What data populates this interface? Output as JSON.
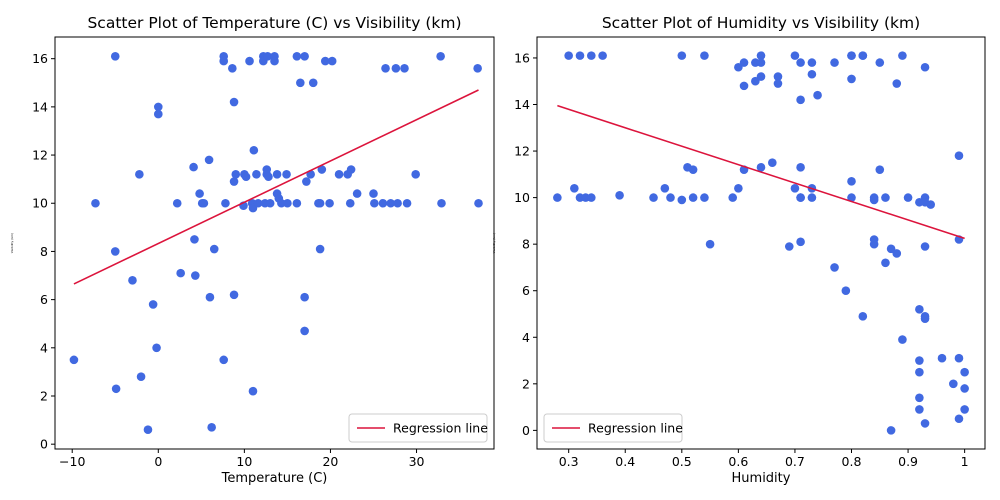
{
  "chart_data": [
    {
      "type": "scatter",
      "title": "Scatter Plot of Temperature (C) vs Visibility (km)",
      "xlabel": "Temperature (C)",
      "ylabel": "Visibility (km)",
      "xlim": [
        -12,
        39
      ],
      "ylim": [
        -0.2,
        16.9
      ],
      "xticks": [
        -10,
        0,
        10,
        20,
        30
      ],
      "yticks": [
        0,
        2,
        4,
        6,
        8,
        10,
        12,
        14,
        16
      ],
      "grid": false,
      "legend": {
        "position": "lower right",
        "entries": [
          "Regression line"
        ]
      },
      "series": [
        {
          "kind": "points",
          "color": "#4169e1",
          "points": [
            [
              -9.8,
              3.5
            ],
            [
              -7.3,
              10
            ],
            [
              -5,
              16.1
            ],
            [
              -5,
              8
            ],
            [
              -4.9,
              2.3
            ],
            [
              -3,
              6.8
            ],
            [
              -2.2,
              11.2
            ],
            [
              -2,
              2.8
            ],
            [
              -1.2,
              0.6
            ],
            [
              -0.6,
              5.8
            ],
            [
              -0.2,
              4
            ],
            [
              0,
              14
            ],
            [
              0,
              13.7
            ],
            [
              2.2,
              10
            ],
            [
              2.6,
              7.1
            ],
            [
              4.1,
              11.5
            ],
            [
              4.2,
              8.5
            ],
            [
              4.3,
              7
            ],
            [
              4.8,
              10.4
            ],
            [
              5.1,
              10
            ],
            [
              5.3,
              10
            ],
            [
              5.9,
              11.8
            ],
            [
              6,
              6.1
            ],
            [
              6.2,
              0.7
            ],
            [
              6.5,
              8.1
            ],
            [
              7.6,
              16.1
            ],
            [
              7.6,
              15.9
            ],
            [
              7.6,
              3.5
            ],
            [
              7.8,
              10
            ],
            [
              8.6,
              15.6
            ],
            [
              8.8,
              14.2
            ],
            [
              8.8,
              6.2
            ],
            [
              8.8,
              10.9
            ],
            [
              9,
              11.2
            ],
            [
              9.9,
              9.9
            ],
            [
              10,
              11.2
            ],
            [
              10.2,
              11.1
            ],
            [
              10.6,
              15.9
            ],
            [
              10.9,
              10
            ],
            [
              11,
              9.8
            ],
            [
              11,
              2.2
            ],
            [
              11.1,
              12.2
            ],
            [
              11.4,
              11.2
            ],
            [
              11.6,
              10
            ],
            [
              12.2,
              16.1
            ],
            [
              12.2,
              15.9
            ],
            [
              12.4,
              10
            ],
            [
              12.6,
              11.2
            ],
            [
              12.6,
              11.4
            ],
            [
              12.7,
              16.1
            ],
            [
              12.8,
              11.1
            ],
            [
              13,
              10
            ],
            [
              13.5,
              16.1
            ],
            [
              13.5,
              15.9
            ],
            [
              13.8,
              10.4
            ],
            [
              13.8,
              11.2
            ],
            [
              14,
              10.2
            ],
            [
              14.3,
              10
            ],
            [
              14.9,
              11.2
            ],
            [
              15,
              10
            ],
            [
              16.1,
              16.1
            ],
            [
              16.1,
              10
            ],
            [
              16.5,
              15
            ],
            [
              17,
              16.1
            ],
            [
              17,
              6.1
            ],
            [
              17,
              4.7
            ],
            [
              17.2,
              10.9
            ],
            [
              17.7,
              11.2
            ],
            [
              18,
              15
            ],
            [
              18.6,
              10
            ],
            [
              18.8,
              8.1
            ],
            [
              18.8,
              10
            ],
            [
              19,
              11.4
            ],
            [
              19.4,
              15.9
            ],
            [
              19.9,
              10
            ],
            [
              20.2,
              15.9
            ],
            [
              21,
              11.2
            ],
            [
              22,
              11.2
            ],
            [
              22.3,
              10
            ],
            [
              22.4,
              11.4
            ],
            [
              23.1,
              10.4
            ],
            [
              25,
              10.4
            ],
            [
              25.1,
              10
            ],
            [
              26.1,
              10
            ],
            [
              26.4,
              15.6
            ],
            [
              27,
              10
            ],
            [
              27.6,
              15.6
            ],
            [
              27.8,
              10
            ],
            [
              28.6,
              15.6
            ],
            [
              28.9,
              10
            ],
            [
              29.9,
              11.2
            ],
            [
              32.8,
              16.1
            ],
            [
              32.9,
              10
            ],
            [
              37.1,
              15.6
            ],
            [
              37.2,
              10
            ]
          ]
        },
        {
          "kind": "line",
          "name": "Regression line",
          "color": "#dc143c",
          "points": [
            [
              -9.8,
              6.65
            ],
            [
              37.2,
              14.7
            ]
          ]
        }
      ]
    },
    {
      "type": "scatter",
      "title": "Scatter Plot of Humidity vs Visibility (km)",
      "xlabel": "Humidity",
      "ylabel": "Visibility (km)",
      "xlim": [
        0.244,
        1.036
      ],
      "ylim": [
        -0.8,
        16.9
      ],
      "xticks": [
        0.3,
        0.4,
        0.5,
        0.6,
        0.7,
        0.8,
        0.9,
        1.0
      ],
      "yticks": [
        0,
        2,
        4,
        6,
        8,
        10,
        12,
        14,
        16
      ],
      "grid": false,
      "legend": {
        "position": "lower left",
        "entries": [
          "Regression line"
        ]
      },
      "series": [
        {
          "kind": "points",
          "color": "#4169e1",
          "points": [
            [
              0.28,
              10
            ],
            [
              0.3,
              16.1
            ],
            [
              0.31,
              10.4
            ],
            [
              0.32,
              16.1
            ],
            [
              0.32,
              10
            ],
            [
              0.33,
              10
            ],
            [
              0.34,
              16.1
            ],
            [
              0.34,
              10
            ],
            [
              0.36,
              16.1
            ],
            [
              0.39,
              10.1
            ],
            [
              0.45,
              10
            ],
            [
              0.47,
              10.4
            ],
            [
              0.48,
              10
            ],
            [
              0.5,
              16.1
            ],
            [
              0.5,
              9.9
            ],
            [
              0.51,
              11.3
            ],
            [
              0.52,
              11.2
            ],
            [
              0.52,
              10
            ],
            [
              0.54,
              16.1
            ],
            [
              0.54,
              10
            ],
            [
              0.55,
              8
            ],
            [
              0.59,
              10
            ],
            [
              0.6,
              15.6
            ],
            [
              0.6,
              10.4
            ],
            [
              0.61,
              15.8
            ],
            [
              0.61,
              14.8
            ],
            [
              0.61,
              11.2
            ],
            [
              0.63,
              15.8
            ],
            [
              0.63,
              15
            ],
            [
              0.64,
              16.1
            ],
            [
              0.64,
              15.8
            ],
            [
              0.64,
              15.2
            ],
            [
              0.64,
              11.3
            ],
            [
              0.66,
              11.5
            ],
            [
              0.67,
              15.2
            ],
            [
              0.67,
              14.9
            ],
            [
              0.69,
              7.9
            ],
            [
              0.7,
              16.1
            ],
            [
              0.7,
              10.4
            ],
            [
              0.71,
              15.8
            ],
            [
              0.71,
              14.2
            ],
            [
              0.71,
              11.3
            ],
            [
              0.71,
              10
            ],
            [
              0.71,
              10
            ],
            [
              0.71,
              8.1
            ],
            [
              0.73,
              15.8
            ],
            [
              0.73,
              15.3
            ],
            [
              0.73,
              10.4
            ],
            [
              0.73,
              10
            ],
            [
              0.74,
              14.4
            ],
            [
              0.77,
              15.8
            ],
            [
              0.77,
              7
            ],
            [
              0.79,
              6
            ],
            [
              0.8,
              16.1
            ],
            [
              0.8,
              16.1
            ],
            [
              0.8,
              15.1
            ],
            [
              0.8,
              10.7
            ],
            [
              0.8,
              10
            ],
            [
              0.82,
              16.1
            ],
            [
              0.82,
              16.1
            ],
            [
              0.82,
              4.9
            ],
            [
              0.84,
              10
            ],
            [
              0.84,
              9.9
            ],
            [
              0.84,
              8.2
            ],
            [
              0.84,
              8
            ],
            [
              0.85,
              15.8
            ],
            [
              0.85,
              11.2
            ],
            [
              0.86,
              10
            ],
            [
              0.86,
              7.2
            ],
            [
              0.87,
              7.8
            ],
            [
              0.87,
              0
            ],
            [
              0.88,
              14.9
            ],
            [
              0.88,
              7.6
            ],
            [
              0.89,
              16.1
            ],
            [
              0.89,
              3.9
            ],
            [
              0.9,
              10
            ],
            [
              0.92,
              9.8
            ],
            [
              0.92,
              5.2
            ],
            [
              0.92,
              3
            ],
            [
              0.92,
              2.5
            ],
            [
              0.92,
              1.4
            ],
            [
              0.92,
              0.9
            ],
            [
              0.93,
              15.6
            ],
            [
              0.93,
              10
            ],
            [
              0.93,
              9.8
            ],
            [
              0.93,
              7.9
            ],
            [
              0.93,
              4.9
            ],
            [
              0.93,
              4.8
            ],
            [
              0.93,
              0.3
            ],
            [
              0.94,
              9.7
            ],
            [
              0.96,
              3.1
            ],
            [
              0.98,
              2
            ],
            [
              0.99,
              11.8
            ],
            [
              0.99,
              8.2
            ],
            [
              0.99,
              3.1
            ],
            [
              0.99,
              0.5
            ],
            [
              1,
              2.5
            ],
            [
              1,
              1.8
            ],
            [
              1,
              0.9
            ]
          ]
        },
        {
          "kind": "line",
          "name": "Regression line",
          "color": "#dc143c",
          "points": [
            [
              0.28,
              13.95
            ],
            [
              1.0,
              8.25
            ]
          ]
        }
      ]
    }
  ]
}
